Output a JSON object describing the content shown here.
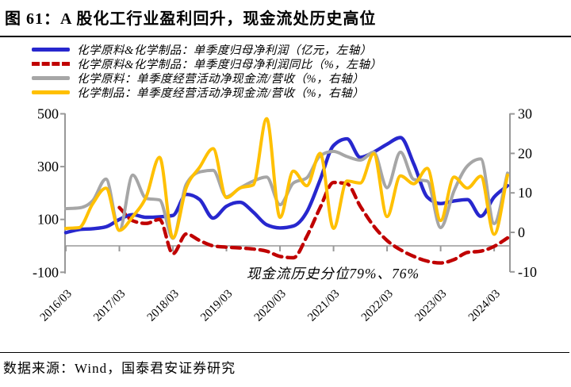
{
  "title": "图 61：A 股化工行业盈利回升，现金流处历史高位",
  "footer": {
    "source_label": "数据来源：Wind，国泰君安证券研究"
  },
  "colors": {
    "profit_blue": "#2727CE",
    "yoy_red": "#C00000",
    "raw_material_gray": "#A6A6A6",
    "product_yellow": "#FFC000",
    "axis_gray": "#999999",
    "text_black": "#000000"
  },
  "chart_data": {
    "type": "line",
    "annotation": "现金流历史分位79%、76%",
    "x_tick_labels": [
      "2016/03",
      "2017/03",
      "2018/03",
      "2019/03",
      "2020/03",
      "2021/03",
      "2022/03",
      "2023/03",
      "2024/03"
    ],
    "quarters": [
      "2016/03",
      "2016/06",
      "2016/09",
      "2016/12",
      "2017/03",
      "2017/06",
      "2017/09",
      "2017/12",
      "2018/03",
      "2018/06",
      "2018/09",
      "2018/12",
      "2019/03",
      "2019/06",
      "2019/09",
      "2019/12",
      "2020/03",
      "2020/06",
      "2020/09",
      "2020/12",
      "2021/03",
      "2021/06",
      "2021/09",
      "2021/12",
      "2022/03",
      "2022/06",
      "2022/09",
      "2022/12",
      "2023/03",
      "2023/06",
      "2023/09",
      "2023/12",
      "2024/03",
      "2024/06"
    ],
    "left_axis": {
      "ticks": [
        500,
        300,
        100,
        -100
      ],
      "range": [
        -100,
        500
      ]
    },
    "right_axis": {
      "ticks": [
        30,
        20,
        10,
        0,
        -10
      ],
      "range": [
        -10,
        30
      ]
    },
    "grid": "none",
    "legend_position": "top-left",
    "series": [
      {
        "name": "化学原料&化学制品：单季度归母净利润（亿元，左轴）",
        "axis": "left",
        "color": "#2727CE",
        "dash": false,
        "width": 4.4,
        "values": [
          50,
          62,
          65,
          72,
          100,
          118,
          108,
          110,
          115,
          195,
          175,
          105,
          150,
          165,
          128,
          80,
          68,
          75,
          128,
          250,
          380,
          405,
          335,
          355,
          385,
          410,
          310,
          185,
          160,
          170,
          175,
          112,
          185,
          228
        ]
      },
      {
        "name": "化学原料&化学制品：单季度归母净利润同比（%，左轴）",
        "axis": "left",
        "color": "#C00000",
        "dash": true,
        "width": 4.4,
        "values": [
          null,
          null,
          null,
          null,
          145,
          95,
          85,
          100,
          -30,
          45,
          20,
          0,
          -5,
          -8,
          -12,
          -20,
          -40,
          -45,
          35,
          145,
          240,
          235,
          150,
          75,
          20,
          -15,
          -40,
          -58,
          -65,
          -52,
          -25,
          -20,
          -2,
          30
        ]
      },
      {
        "name": "化学原料：单季度经营活动净现金流/营收（%，右轴）",
        "axis": "right",
        "color": "#A6A6A6",
        "dash": false,
        "width": 4,
        "values": [
          6,
          6.2,
          8,
          13.5,
          0.5,
          14.5,
          8.6,
          8.2,
          -1.5,
          12.2,
          15.3,
          15.7,
          9,
          11.2,
          13,
          14,
          7,
          12.5,
          13.8,
          19.4,
          20.5,
          19.2,
          18.3,
          20.3,
          11.3,
          20.3,
          13.4,
          13,
          1.2,
          10.5,
          16.8,
          18.6,
          2.2,
          15
        ]
      },
      {
        "name": "化学制品：单季度经营活动净现金流/营收（%，右轴）",
        "axis": "right",
        "color": "#FFC000",
        "dash": false,
        "width": 4,
        "values": [
          1,
          1.2,
          7.2,
          11.2,
          0.5,
          4,
          9,
          19,
          -1.4,
          11.3,
          16.5,
          21.2,
          8.8,
          11.2,
          12,
          28.8,
          3.8,
          15.5,
          11.8,
          20,
          1,
          13,
          12.5,
          19.9,
          4,
          14.3,
          12.3,
          16.2,
          3,
          14,
          11.2,
          14.2,
          -0.5,
          14.5
        ]
      }
    ]
  }
}
